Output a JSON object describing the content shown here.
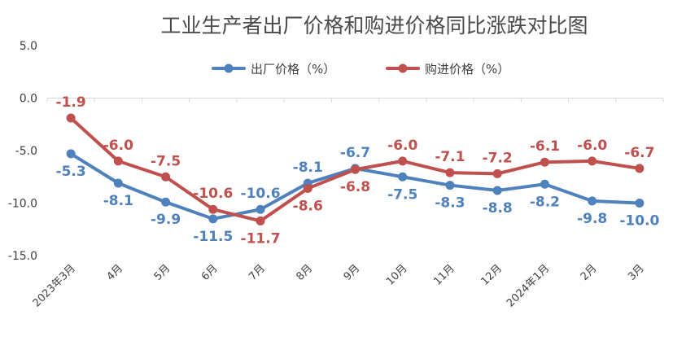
{
  "chart_data": {
    "type": "line",
    "title": "工业生产者出厂价格和购进价格同比涨跌对比图",
    "xlabel": "",
    "ylabel": "",
    "categories": [
      "2023年3月",
      "4月",
      "5月",
      "6月",
      "7月",
      "8月",
      "9月",
      "10月",
      "11月",
      "12月",
      "2024年1月",
      "2月",
      "3月"
    ],
    "ylim": [
      -15.0,
      5.0
    ],
    "yticks": [
      "5.0",
      "0.0",
      "-5.0",
      "-10.0",
      "-15.0"
    ],
    "grid": false,
    "legend_position": "top",
    "series": [
      {
        "name": "出厂价格（%）",
        "color": "#4f81bd",
        "values": [
          -5.3,
          -8.1,
          -9.9,
          -11.5,
          -10.6,
          -8.1,
          -6.7,
          -7.5,
          -8.3,
          -8.8,
          -8.2,
          -9.8,
          -10.0
        ],
        "labels": [
          "-5.3",
          "-8.1",
          "-9.9",
          "-11.5",
          "-10.6",
          "-8.1",
          "-6.7",
          "-7.5",
          "-8.3",
          "-8.8",
          "-8.2",
          "-9.8",
          "-10.0"
        ]
      },
      {
        "name": "购进价格（%）",
        "color": "#c0504d",
        "values": [
          -1.9,
          -6.0,
          -7.5,
          -10.6,
          -11.7,
          -8.6,
          -6.8,
          -6.0,
          -7.1,
          -7.2,
          -6.1,
          -6.0,
          -6.7
        ],
        "labels": [
          "-1.9",
          "-6.0",
          "-7.5",
          "-10.6",
          "-11.7",
          "-8.6",
          "-6.8",
          "-6.0",
          "-7.1",
          "-7.2",
          "-6.1",
          "-6.0",
          "-6.7"
        ]
      }
    ]
  }
}
